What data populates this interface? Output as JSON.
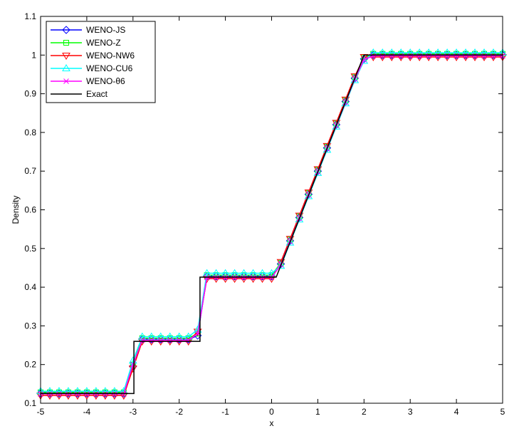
{
  "chart_data": {
    "type": "line",
    "xlabel": "x",
    "ylabel": "Density",
    "xlim": [
      -5,
      5
    ],
    "ylim": [
      0.1,
      1.1
    ],
    "xticks": [
      -5,
      -4,
      -3,
      -2,
      -1,
      0,
      1,
      2,
      3,
      4,
      5
    ],
    "yticks": [
      0.1,
      0.2,
      0.3,
      0.4,
      0.5,
      0.6,
      0.7,
      0.8,
      0.9,
      1,
      1.1
    ],
    "legend": "upper-left",
    "x": [
      -5,
      -4.8,
      -4.6,
      -4.4,
      -4.2,
      -4,
      -3.8,
      -3.6,
      -3.4,
      -3.2,
      -3,
      -2.8,
      -2.6,
      -2.4,
      -2.2,
      -2,
      -1.8,
      -1.6,
      -1.4,
      -1.2,
      -1,
      -0.8,
      -0.6,
      -0.4,
      -0.2,
      0,
      0.2,
      0.4,
      0.6,
      0.8,
      1,
      1.2,
      1.4,
      1.6,
      1.8,
      2,
      2.2,
      2.4,
      2.6,
      2.8,
      3,
      3.2,
      3.4,
      3.6,
      3.8,
      4,
      4.2,
      4.4,
      4.6,
      4.8,
      5
    ],
    "series": [
      {
        "name": "WENO-JS",
        "color": "#0000ff",
        "marker": "diamond",
        "values": [
          0.125,
          0.125,
          0.125,
          0.125,
          0.125,
          0.125,
          0.125,
          0.125,
          0.125,
          0.125,
          0.195,
          0.265,
          0.265,
          0.265,
          0.265,
          0.265,
          0.265,
          0.275,
          0.428,
          0.428,
          0.428,
          0.428,
          0.428,
          0.428,
          0.428,
          0.428,
          0.46,
          0.52,
          0.58,
          0.64,
          0.7,
          0.76,
          0.82,
          0.88,
          0.94,
          0.99,
          1,
          1,
          1,
          1,
          1,
          1,
          1,
          1,
          1,
          1,
          1,
          1,
          1,
          1,
          1
        ]
      },
      {
        "name": "WENO-Z",
        "color": "#00ff00",
        "marker": "square",
        "values": [
          0.128,
          0.128,
          0.128,
          0.128,
          0.128,
          0.128,
          0.128,
          0.128,
          0.128,
          0.128,
          0.2,
          0.268,
          0.268,
          0.268,
          0.268,
          0.268,
          0.268,
          0.28,
          0.431,
          0.431,
          0.431,
          0.431,
          0.431,
          0.431,
          0.431,
          0.431,
          0.463,
          0.523,
          0.583,
          0.643,
          0.703,
          0.763,
          0.823,
          0.883,
          0.943,
          0.993,
          1.003,
          1.003,
          1.003,
          1.003,
          1.003,
          1.003,
          1.003,
          1.003,
          1.003,
          1.003,
          1.003,
          1.003,
          1.003,
          1.003,
          1.003
        ]
      },
      {
        "name": "WENO-NW6",
        "color": "#ff0000",
        "marker": "tri-down",
        "values": [
          0.12,
          0.12,
          0.12,
          0.12,
          0.12,
          0.12,
          0.12,
          0.12,
          0.12,
          0.12,
          0.19,
          0.26,
          0.26,
          0.26,
          0.26,
          0.26,
          0.26,
          0.285,
          0.422,
          0.422,
          0.422,
          0.422,
          0.422,
          0.422,
          0.422,
          0.422,
          0.465,
          0.525,
          0.585,
          0.645,
          0.705,
          0.765,
          0.825,
          0.885,
          0.945,
          0.995,
          0.995,
          0.995,
          0.995,
          0.995,
          0.995,
          0.995,
          0.995,
          0.995,
          0.995,
          0.995,
          0.995,
          0.995,
          0.995,
          0.995,
          0.995
        ]
      },
      {
        "name": "WENO-CU6",
        "color": "#00ffff",
        "marker": "tri-up",
        "values": [
          0.131,
          0.131,
          0.131,
          0.131,
          0.131,
          0.131,
          0.131,
          0.131,
          0.131,
          0.131,
          0.21,
          0.272,
          0.272,
          0.272,
          0.272,
          0.272,
          0.272,
          0.29,
          0.436,
          0.436,
          0.436,
          0.436,
          0.436,
          0.436,
          0.436,
          0.436,
          0.455,
          0.515,
          0.575,
          0.635,
          0.695,
          0.755,
          0.815,
          0.875,
          0.935,
          0.985,
          1.006,
          1.006,
          1.006,
          1.006,
          1.006,
          1.006,
          1.006,
          1.006,
          1.006,
          1.006,
          1.006,
          1.006,
          1.006,
          1.006,
          1.006
        ]
      },
      {
        "name": "WENO-θ6",
        "color": "#ff00ff",
        "marker": "x",
        "values": [
          0.124,
          0.124,
          0.124,
          0.124,
          0.124,
          0.124,
          0.124,
          0.124,
          0.124,
          0.124,
          0.2,
          0.263,
          0.263,
          0.263,
          0.263,
          0.263,
          0.263,
          0.28,
          0.425,
          0.425,
          0.425,
          0.425,
          0.425,
          0.425,
          0.425,
          0.425,
          0.458,
          0.518,
          0.578,
          0.638,
          0.698,
          0.758,
          0.818,
          0.878,
          0.938,
          0.988,
          0.998,
          0.998,
          0.998,
          0.998,
          0.998,
          0.998,
          0.998,
          0.998,
          0.998,
          0.998,
          0.998,
          0.998,
          0.998,
          0.998,
          0.998
        ]
      },
      {
        "name": "Exact",
        "color": "#000000",
        "marker": "none",
        "x": [
          -5,
          -2.98,
          -2.98,
          -1.55,
          -1.55,
          0.1,
          2.0,
          5
        ],
        "values": [
          0.125,
          0.125,
          0.26,
          0.26,
          0.426,
          0.426,
          1.0,
          1.0
        ]
      }
    ]
  }
}
